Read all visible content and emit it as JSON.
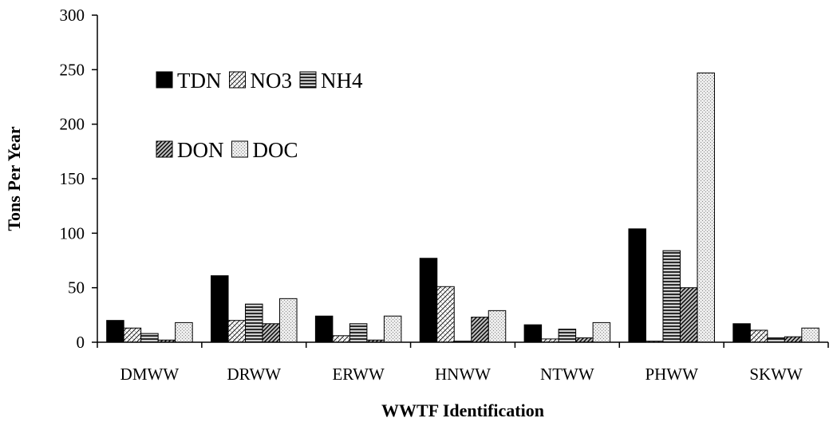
{
  "chart_data": {
    "type": "bar",
    "xlabel": "WWTF Identification",
    "ylabel": "Tons Per Year",
    "ylim": [
      0,
      300
    ],
    "yticks": [
      0,
      50,
      100,
      150,
      200,
      250,
      300
    ],
    "categories": [
      "DMWW",
      "DRWW",
      "ERWW",
      "HNWW",
      "NTWW",
      "PHWW",
      "SKWW"
    ],
    "series": [
      {
        "name": "TDN",
        "pattern": "solid-black",
        "values": [
          20,
          61,
          24,
          77,
          16,
          104,
          17
        ]
      },
      {
        "name": "NO3",
        "pattern": "fine-cross-hatch",
        "values": [
          13,
          20,
          6,
          51,
          3,
          1,
          11
        ]
      },
      {
        "name": "NH4",
        "pattern": "horizontal-lines",
        "values": [
          8,
          35,
          17,
          1,
          12,
          84,
          4
        ]
      },
      {
        "name": "DON",
        "pattern": "diagonal-lines",
        "values": [
          2,
          17,
          2,
          23,
          4,
          50,
          5
        ]
      },
      {
        "name": "DOC",
        "pattern": "light-dots",
        "values": [
          18,
          40,
          24,
          29,
          18,
          247,
          13
        ]
      }
    ],
    "legend": {
      "placement": "top-left",
      "rows": [
        [
          "TDN",
          "NO3",
          "NH4"
        ],
        [
          "DON",
          "DOC"
        ]
      ]
    },
    "grid": false
  }
}
